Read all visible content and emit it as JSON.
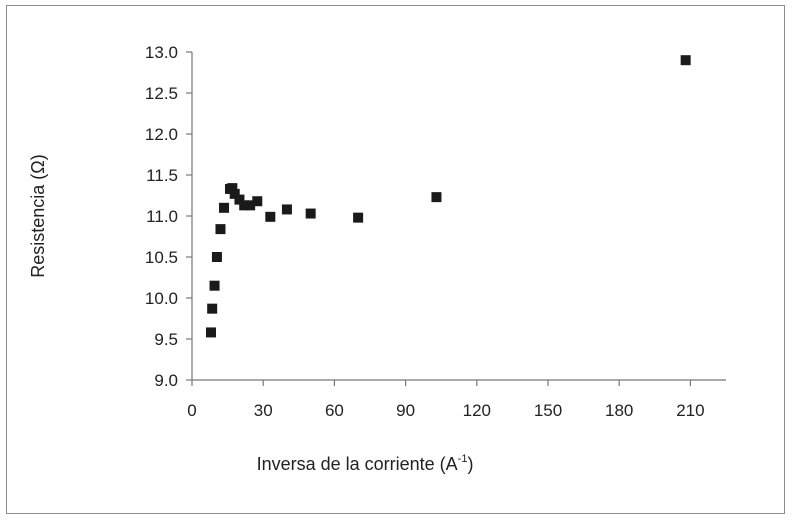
{
  "chart_data": {
    "type": "scatter",
    "title": "",
    "xlabel": "Inversa de la corriente (A",
    "xlabel_sup": "-1",
    "xlabel_suffix": ")",
    "ylabel": "Resistencia  (Ω)",
    "xlim": [
      0,
      225
    ],
    "ylim": [
      9.0,
      13.0
    ],
    "xticks": [
      "0",
      "30",
      "60",
      "90",
      "120",
      "150",
      "180",
      "210"
    ],
    "yticks": [
      "9.0",
      "9.5",
      "10.0",
      "10.5",
      "11.0",
      "11.5",
      "12.0",
      "12.5",
      "13.0"
    ],
    "grid": false,
    "legend": "none",
    "marker_color": "#1a1a1a",
    "series": [
      {
        "x": [
          8,
          8.5,
          9.5,
          10.5,
          12,
          13.5,
          16,
          17,
          18,
          20,
          22,
          24.5,
          27.5,
          33,
          40,
          50,
          70,
          103,
          208
        ],
        "y": [
          9.58,
          9.87,
          10.15,
          10.5,
          10.84,
          11.1,
          11.33,
          11.34,
          11.27,
          11.2,
          11.13,
          11.13,
          11.18,
          10.99,
          11.08,
          11.03,
          10.98,
          11.23,
          12.9
        ]
      }
    ]
  }
}
